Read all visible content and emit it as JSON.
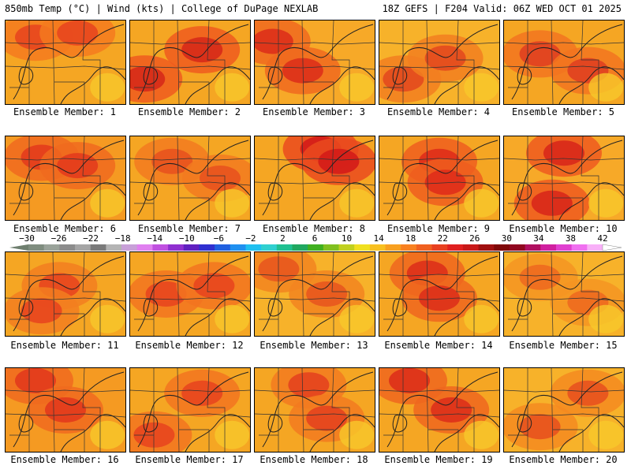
{
  "header": {
    "left": "850mb Temp (°C) | Wind (kts) | College of DuPage NEXLAB",
    "right": "18Z GEFS | F204 Valid: 06Z WED OCT 01 2025"
  },
  "panels": [
    {
      "label": "Ensemble Member: 1",
      "bg": "#f5a623",
      "hot": "#e8461e",
      "warm": "#f47a1f",
      "hotspots": [
        [
          0.25,
          0.2
        ],
        [
          0.6,
          0.15
        ]
      ]
    },
    {
      "label": "Ensemble Member: 2",
      "bg": "#f5a623",
      "hot": "#d62a18",
      "warm": "#ee5a1e",
      "hotspots": [
        [
          0.12,
          0.7
        ],
        [
          0.6,
          0.35
        ]
      ]
    },
    {
      "label": "Ensemble Member: 3",
      "bg": "#f7a928",
      "hot": "#dd3019",
      "warm": "#f06a1f",
      "hotspots": [
        [
          0.15,
          0.25
        ],
        [
          0.4,
          0.6
        ]
      ]
    },
    {
      "label": "Ensemble Member: 4",
      "bg": "#f7b22a",
      "hot": "#e34a1e",
      "warm": "#f27e20",
      "hotspots": [
        [
          0.2,
          0.7
        ],
        [
          0.55,
          0.45
        ]
      ]
    },
    {
      "label": "Ensemble Member: 5",
      "bg": "#f5a623",
      "hot": "#e04020",
      "warm": "#f27420",
      "hotspots": [
        [
          0.3,
          0.4
        ],
        [
          0.7,
          0.6
        ]
      ]
    },
    {
      "label": "Ensemble Member: 6",
      "bg": "#f59a22",
      "hot": "#e33c1c",
      "warm": "#f06a1f",
      "hotspots": [
        [
          0.3,
          0.25
        ],
        [
          0.6,
          0.35
        ]
      ]
    },
    {
      "label": "Ensemble Member: 7",
      "bg": "#f5a623",
      "hot": "#e8521e",
      "warm": "#f27a20",
      "hotspots": [
        [
          0.35,
          0.3
        ],
        [
          0.75,
          0.5
        ]
      ]
    },
    {
      "label": "Ensemble Member: 8",
      "bg": "#f5a623",
      "hot": "#d41c18",
      "warm": "#ea4a1e",
      "hotspots": [
        [
          0.55,
          0.15
        ],
        [
          0.7,
          0.3
        ]
      ]
    },
    {
      "label": "Ensemble Member: 9",
      "bg": "#f5a623",
      "hot": "#df2e1a",
      "warm": "#ef5e1f",
      "hotspots": [
        [
          0.5,
          0.3
        ],
        [
          0.55,
          0.55
        ]
      ]
    },
    {
      "label": "Ensemble Member: 10",
      "bg": "#f7a928",
      "hot": "#d8281a",
      "warm": "#ee5a1e",
      "hotspots": [
        [
          0.5,
          0.2
        ],
        [
          0.4,
          0.8
        ]
      ]
    },
    {
      "label": "Ensemble Member: 11",
      "bg": "#f5a623",
      "hot": "#e8461e",
      "warm": "#f27e20",
      "hotspots": [
        [
          0.45,
          0.4
        ],
        [
          0.3,
          0.7
        ]
      ]
    },
    {
      "label": "Ensemble Member: 12",
      "bg": "#f5a623",
      "hot": "#e8461e",
      "warm": "#f27420",
      "hotspots": [
        [
          0.3,
          0.5
        ],
        [
          0.7,
          0.4
        ]
      ]
    },
    {
      "label": "Ensemble Member: 13",
      "bg": "#f7b22a",
      "hot": "#e8561e",
      "warm": "#f28420",
      "hotspots": [
        [
          0.2,
          0.2
        ],
        [
          0.6,
          0.5
        ]
      ]
    },
    {
      "label": "Ensemble Member: 14",
      "bg": "#f5a623",
      "hot": "#dd3019",
      "warm": "#ef661f",
      "hotspots": [
        [
          0.4,
          0.25
        ],
        [
          0.5,
          0.55
        ]
      ]
    },
    {
      "label": "Ensemble Member: 15",
      "bg": "#f7b22a",
      "hot": "#ee6a1f",
      "warm": "#f59422",
      "hotspots": [
        [
          0.3,
          0.3
        ],
        [
          0.7,
          0.6
        ]
      ]
    },
    {
      "label": "Ensemble Member: 16",
      "bg": "#f59a22",
      "hot": "#e23a1c",
      "warm": "#f06a1f",
      "hotspots": [
        [
          0.25,
          0.15
        ],
        [
          0.5,
          0.5
        ]
      ]
    },
    {
      "label": "Ensemble Member: 17",
      "bg": "#f5a623",
      "hot": "#e8461e",
      "warm": "#f27420",
      "hotspots": [
        [
          0.2,
          0.8
        ],
        [
          0.6,
          0.3
        ]
      ]
    },
    {
      "label": "Ensemble Member: 18",
      "bg": "#f5a623",
      "hot": "#e4421e",
      "warm": "#f27a20",
      "hotspots": [
        [
          0.45,
          0.2
        ],
        [
          0.6,
          0.6
        ]
      ]
    },
    {
      "label": "Ensemble Member: 19",
      "bg": "#f5a623",
      "hot": "#dd3019",
      "warm": "#ef661f",
      "hotspots": [
        [
          0.25,
          0.15
        ],
        [
          0.6,
          0.5
        ]
      ]
    },
    {
      "label": "Ensemble Member: 20",
      "bg": "#f7b22a",
      "hot": "#e8521e",
      "warm": "#f48a20",
      "hotspots": [
        [
          0.3,
          0.7
        ],
        [
          0.7,
          0.3
        ]
      ]
    }
  ],
  "colorbar": {
    "ticks": [
      "−30",
      "−26",
      "−22",
      "−18",
      "−14",
      "−10",
      "−6",
      "−2",
      "2",
      "6",
      "10",
      "14",
      "18",
      "22",
      "26",
      "30",
      "34",
      "38",
      "42"
    ],
    "colors": [
      "#7f8d7f",
      "#9aa39a",
      "#8c8c8c",
      "#a5a5a5",
      "#7a7a7a",
      "#b4b4b4",
      "#c8a0d8",
      "#e080f0",
      "#c050e0",
      "#9030d0",
      "#6020c0",
      "#3030d0",
      "#2060e0",
      "#2090f0",
      "#20c0f0",
      "#30d0d0",
      "#20c090",
      "#20a860",
      "#40b020",
      "#80c020",
      "#c0d020",
      "#f0e020",
      "#f8c020",
      "#f8a020",
      "#f88020",
      "#f06020",
      "#e84020",
      "#e02020",
      "#c81818",
      "#a01010",
      "#800808",
      "#900820",
      "#b01060",
      "#d020a0",
      "#e040d0",
      "#f070f0",
      "#f8b0f8"
    ]
  }
}
